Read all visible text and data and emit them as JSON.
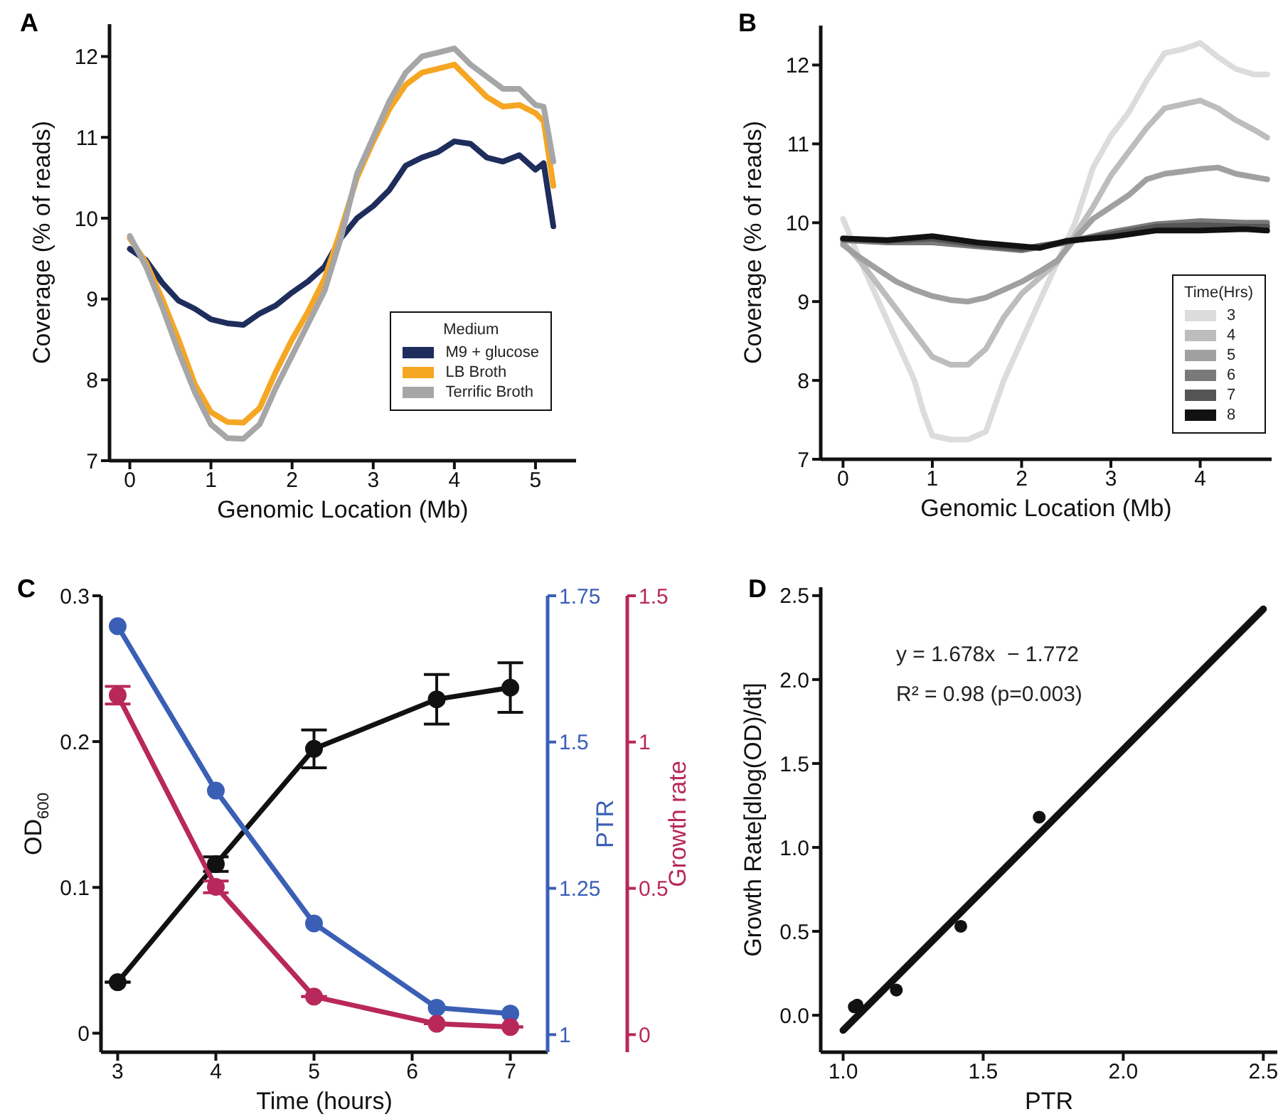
{
  "chart_data": [
    {
      "type": "line",
      "title": "A",
      "xlabel": "Genomic Location (Mb)",
      "ylabel": "Coverage (% of reads)",
      "legend_title": "Medium",
      "legend": "bottom right",
      "x": [
        0,
        0.2,
        0.4,
        0.6,
        0.8,
        1.0,
        1.2,
        1.4,
        1.6,
        1.8,
        2.0,
        2.2,
        2.4,
        2.6,
        2.8,
        3.0,
        3.2,
        3.4,
        3.6,
        3.8,
        4.0,
        4.2,
        4.4,
        4.6,
        4.8,
        5.0,
        5.1,
        5.22
      ],
      "xlim": [
        -0.25,
        5.5
      ],
      "xticks": [
        0,
        1,
        2,
        3,
        4,
        5
      ],
      "ylim": [
        7,
        12.4
      ],
      "yticks": [
        7,
        8,
        9,
        10,
        11,
        12
      ],
      "series": [
        {
          "name": "M9 + glucose",
          "color": "#1f2d5c",
          "values": [
            9.62,
            9.48,
            9.2,
            8.98,
            8.88,
            8.75,
            8.7,
            8.68,
            8.82,
            8.92,
            9.08,
            9.22,
            9.4,
            9.75,
            10.0,
            10.15,
            10.35,
            10.65,
            10.75,
            10.82,
            10.95,
            10.92,
            10.75,
            10.7,
            10.78,
            10.6,
            10.68,
            9.9
          ]
        },
        {
          "name": "LB Broth",
          "color": "#f5a623",
          "values": [
            9.75,
            9.45,
            9.0,
            8.5,
            7.95,
            7.6,
            7.48,
            7.47,
            7.65,
            8.1,
            8.5,
            8.85,
            9.25,
            9.85,
            10.5,
            10.95,
            11.35,
            11.65,
            11.8,
            11.85,
            11.9,
            11.7,
            11.5,
            11.38,
            11.4,
            11.3,
            11.2,
            10.4
          ]
        },
        {
          "name": "Terrific Broth",
          "color": "#a6a6a8",
          "values": [
            9.78,
            9.4,
            8.9,
            8.35,
            7.85,
            7.45,
            7.28,
            7.27,
            7.45,
            7.9,
            8.3,
            8.7,
            9.1,
            9.75,
            10.55,
            11.0,
            11.45,
            11.8,
            12.0,
            12.05,
            12.1,
            11.9,
            11.75,
            11.6,
            11.6,
            11.4,
            11.38,
            10.7
          ]
        }
      ]
    },
    {
      "type": "line",
      "title": "B",
      "xlabel": "Genomic Location (Mb)",
      "ylabel": "Coverage (% of reads)",
      "legend_title": "Time(Hrs)",
      "legend": "bottom right",
      "xlim": [
        -0.25,
        4.8
      ],
      "xticks": [
        0,
        1,
        2,
        3,
        4
      ],
      "ylim": [
        7,
        12.5
      ],
      "yticks": [
        7,
        8,
        9,
        10,
        11,
        12
      ],
      "series": [
        {
          "name": "3",
          "color": "#dcdcdc",
          "x": [
            0,
            0.2,
            0.4,
            0.6,
            0.8,
            0.9,
            1.0,
            1.2,
            1.4,
            1.6,
            1.8,
            2.0,
            2.2,
            2.4,
            2.6,
            2.8,
            3.0,
            3.2,
            3.4,
            3.6,
            3.8,
            4.0,
            4.2,
            4.4,
            4.6,
            4.75
          ],
          "values": [
            10.05,
            9.5,
            9.0,
            8.5,
            8.0,
            7.6,
            7.3,
            7.25,
            7.25,
            7.35,
            8.0,
            8.5,
            9.0,
            9.5,
            10.0,
            10.7,
            11.1,
            11.4,
            11.8,
            12.15,
            12.2,
            12.28,
            12.1,
            11.95,
            11.88,
            11.88
          ]
        },
        {
          "name": "4",
          "color": "#bdbdbd",
          "x": [
            0,
            0.2,
            0.4,
            0.6,
            0.8,
            1.0,
            1.2,
            1.4,
            1.6,
            1.8,
            2.0,
            2.2,
            2.4,
            2.6,
            2.8,
            3.0,
            3.2,
            3.4,
            3.6,
            3.8,
            4.0,
            4.2,
            4.4,
            4.6,
            4.75
          ],
          "values": [
            9.75,
            9.5,
            9.2,
            8.9,
            8.6,
            8.3,
            8.2,
            8.2,
            8.4,
            8.8,
            9.1,
            9.3,
            9.5,
            9.85,
            10.2,
            10.6,
            10.9,
            11.2,
            11.45,
            11.5,
            11.55,
            11.45,
            11.3,
            11.18,
            11.08
          ]
        },
        {
          "name": "5",
          "color": "#a0a0a0",
          "x": [
            0,
            0.2,
            0.4,
            0.6,
            0.8,
            1.0,
            1.2,
            1.4,
            1.6,
            1.8,
            2.0,
            2.2,
            2.4,
            2.6,
            2.8,
            3.0,
            3.2,
            3.4,
            3.6,
            3.8,
            4.0,
            4.2,
            4.4,
            4.6,
            4.75
          ],
          "values": [
            9.72,
            9.55,
            9.4,
            9.25,
            9.15,
            9.07,
            9.02,
            9.0,
            9.05,
            9.15,
            9.25,
            9.38,
            9.52,
            9.8,
            10.05,
            10.2,
            10.35,
            10.55,
            10.62,
            10.65,
            10.68,
            10.7,
            10.62,
            10.58,
            10.55
          ]
        },
        {
          "name": "6",
          "color": "#7a7a7a",
          "x": [
            0,
            0.5,
            1.0,
            1.5,
            2.0,
            2.5,
            3.0,
            3.5,
            4.0,
            4.5,
            4.75
          ],
          "values": [
            9.78,
            9.75,
            9.75,
            9.7,
            9.65,
            9.75,
            9.88,
            9.98,
            10.02,
            10.0,
            10.0
          ]
        },
        {
          "name": "7",
          "color": "#555555",
          "x": [
            0,
            0.5,
            1.0,
            1.5,
            2.0,
            2.5,
            3.0,
            3.5,
            4.0,
            4.5,
            4.75
          ],
          "values": [
            9.8,
            9.77,
            9.8,
            9.72,
            9.67,
            9.76,
            9.85,
            9.95,
            9.97,
            9.95,
            9.95
          ]
        },
        {
          "name": "8",
          "color": "#111111",
          "x": [
            0,
            0.5,
            1.0,
            1.5,
            2.0,
            2.2,
            2.5,
            3.0,
            3.5,
            4.0,
            4.5,
            4.75
          ],
          "values": [
            9.8,
            9.78,
            9.83,
            9.75,
            9.7,
            9.68,
            9.77,
            9.82,
            9.9,
            9.9,
            9.92,
            9.9
          ]
        }
      ]
    },
    {
      "type": "line",
      "title": "C",
      "xlabel": "Time (hours)",
      "ylabel": "OD$_{600}$",
      "y2label": "PTR",
      "y3label": "Growth rate",
      "marker": "circle",
      "x": [
        3,
        4,
        5,
        6.25,
        7
      ],
      "xlim": [
        2.83,
        7.38
      ],
      "xticks": [
        3,
        4,
        5,
        6,
        7
      ],
      "ylim": [
        -0.013,
        0.3
      ],
      "yticks": [
        0,
        0.1,
        0.2,
        0.3
      ],
      "y2lim": [
        0.97,
        1.75
      ],
      "y2ticks": [
        1,
        1.25,
        1.5,
        1.75
      ],
      "y3lim": [
        -0.06,
        1.5
      ],
      "y3ticks": [
        0,
        0.5,
        1,
        1.5
      ],
      "series": [
        {
          "color": "#111111",
          "values": [
            0.035,
            0.116,
            0.195,
            0.229,
            0.237
          ],
          "errors": [
            null,
            0.005,
            0.013,
            0.017,
            0.017
          ]
        },
        {
          "color": "#3a5fb5",
          "axis": "y2",
          "values": [
            1.698,
            1.417,
            1.19,
            1.046,
            1.036
          ]
        },
        {
          "color": "#b8285a",
          "axis": "y3",
          "values": [
            1.16,
            0.505,
            0.13,
            0.037,
            0.026
          ],
          "errors": [
            0.03,
            0.02,
            null,
            null,
            null
          ]
        }
      ]
    },
    {
      "type": "scatter",
      "title": "D",
      "xlabel": "PTR",
      "ylabel": "Growth Rate[dlog(OD)/dt]",
      "marker": "circle",
      "annotations": [
        "y = 1.678x  − 1.772",
        "R² = 0.98 (p=0.003)"
      ],
      "xlim": [
        0.92,
        2.55
      ],
      "xticks": [
        {
          "value": 1,
          "label": "1.0"
        },
        1.5,
        {
          "value": 2,
          "label": "2.0"
        },
        2.5
      ],
      "ylim": [
        -0.22,
        2.55
      ],
      "yticks": [
        {
          "value": 0,
          "label": "0.0"
        },
        0.5,
        {
          "value": 1,
          "label": "1.0"
        },
        1.5,
        {
          "value": 2,
          "label": "2.0"
        },
        2.5
      ],
      "series": [
        {
          "type": "line",
          "color": "#111111",
          "marker": "none",
          "x": [
            1.0,
            2.5
          ],
          "values": [
            -0.09,
            2.42
          ]
        },
        {
          "color": "#111111",
          "x": [
            1.04,
            1.05,
            1.19,
            1.42,
            1.7
          ],
          "values": [
            0.05,
            0.06,
            0.15,
            0.53,
            1.18
          ]
        }
      ]
    }
  ]
}
